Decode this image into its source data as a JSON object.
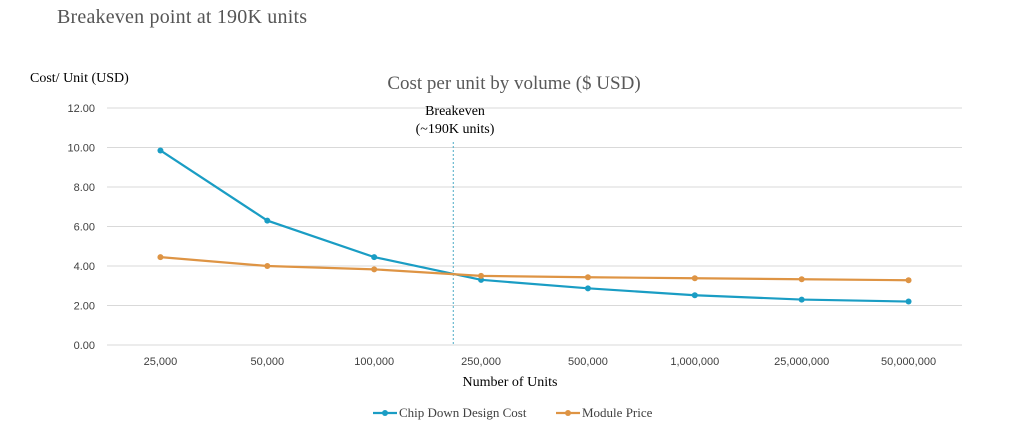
{
  "heading": "Breakeven point at 190K units",
  "chart_data": {
    "type": "line",
    "title": "Cost per unit by volume ($ USD)",
    "ylabel": "Cost/ Unit (USD)",
    "xlabel": "Number of Units",
    "categories": [
      "25,000",
      "50,000",
      "100,000",
      "250,000",
      "500,000",
      "1,000,000",
      "25,000,000",
      "50,000,000"
    ],
    "ylim": [
      0,
      12
    ],
    "yticks": [
      "0.00",
      "2.00",
      "4.00",
      "6.00",
      "8.00",
      "10.00",
      "12.00"
    ],
    "grid": true,
    "legend_position": "bottom",
    "series": [
      {
        "name": "Chip Down Design Cost",
        "color": "#1a9dc4",
        "values": [
          9.85,
          6.3,
          4.45,
          3.3,
          2.87,
          2.52,
          2.3,
          2.2
        ]
      },
      {
        "name": "Module Price",
        "color": "#de9444",
        "values": [
          4.45,
          4.0,
          3.83,
          3.5,
          3.43,
          3.38,
          3.33,
          3.28
        ]
      }
    ],
    "annotation": {
      "lines": [
        "Breakeven",
        "(~190K units)"
      ],
      "between_categories": [
        "100,000",
        "250,000"
      ],
      "fraction": 0.74
    }
  }
}
